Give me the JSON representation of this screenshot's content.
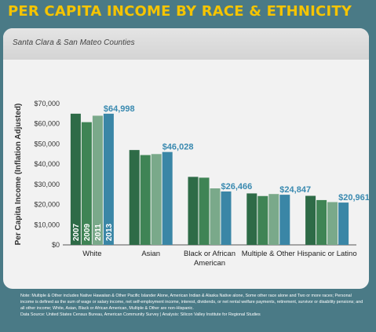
{
  "header": {
    "title": "PER CAPITA INCOME BY RACE & ETHNICITY"
  },
  "card": {
    "subtitle": "Santa Clara & San Mateo Counties"
  },
  "notes": {
    "line1": "Note: Multiple & Other includes Native Hawaiian & Other Pacific Islander Alone, American Indian & Alaska Native alone, Some other race alone and Two or more races; Personal income is defined as the sum of wage or salary income, net self-employment income, interest, dividends, or net rental welfare payments, retirement, survivor or disability pensions; and all other income; White, Asian, Black or African American, Multiple & Other are non-Hispanic.",
    "line2": "Data Source: United States Census Bureau, American Community Survey | Analysis: Silicon Valley Institute for Regional Studies"
  },
  "colors": {
    "page_bg": "#4a7a86",
    "title": "#f5c400",
    "card_bg": "#f2f2f2",
    "callout": "#3a8ab0",
    "series": [
      "#2e6b47",
      "#3f8455",
      "#7aa98a",
      "#3a86a6"
    ]
  },
  "chart_data": {
    "type": "bar",
    "title": "PER CAPITA INCOME BY RACE & ETHNICITY",
    "subtitle": "Santa Clara & San Mateo Counties",
    "xlabel": "",
    "ylabel": "Per Capita Income (Inflation Adjusted)",
    "ylim": [
      0,
      70000
    ],
    "yticks": [
      0,
      10000,
      20000,
      30000,
      40000,
      50000,
      60000,
      70000
    ],
    "ytick_labels": [
      "$0",
      "$10,000",
      "$20,000",
      "$30,000",
      "$40,000",
      "$50,000",
      "$60,000",
      "$70,000"
    ],
    "grid": false,
    "legend": "labels inside bars of first group",
    "categories": [
      "White",
      "Asian",
      "Black or African American",
      "Multiple & Other",
      "Hispanic or Latino"
    ],
    "category_label_lines": [
      [
        "White"
      ],
      [
        "Asian"
      ],
      [
        "Black or African",
        "American"
      ],
      [
        "Multiple & Other"
      ],
      [
        "Hispanic or Latino"
      ]
    ],
    "series": [
      {
        "name": "2007",
        "values": [
          65000,
          47000,
          33700,
          25500,
          24300
        ]
      },
      {
        "name": "2009",
        "values": [
          60800,
          44500,
          33300,
          24200,
          22200
        ]
      },
      {
        "name": "2011",
        "values": [
          64000,
          45000,
          28000,
          25200,
          21200
        ]
      },
      {
        "name": "2013",
        "values": [
          64998,
          46028,
          26466,
          24847,
          20961
        ]
      }
    ],
    "data_labels": [
      "$64,998",
      "$46,028",
      "$26,466",
      "$24,847",
      "$20,961"
    ]
  }
}
